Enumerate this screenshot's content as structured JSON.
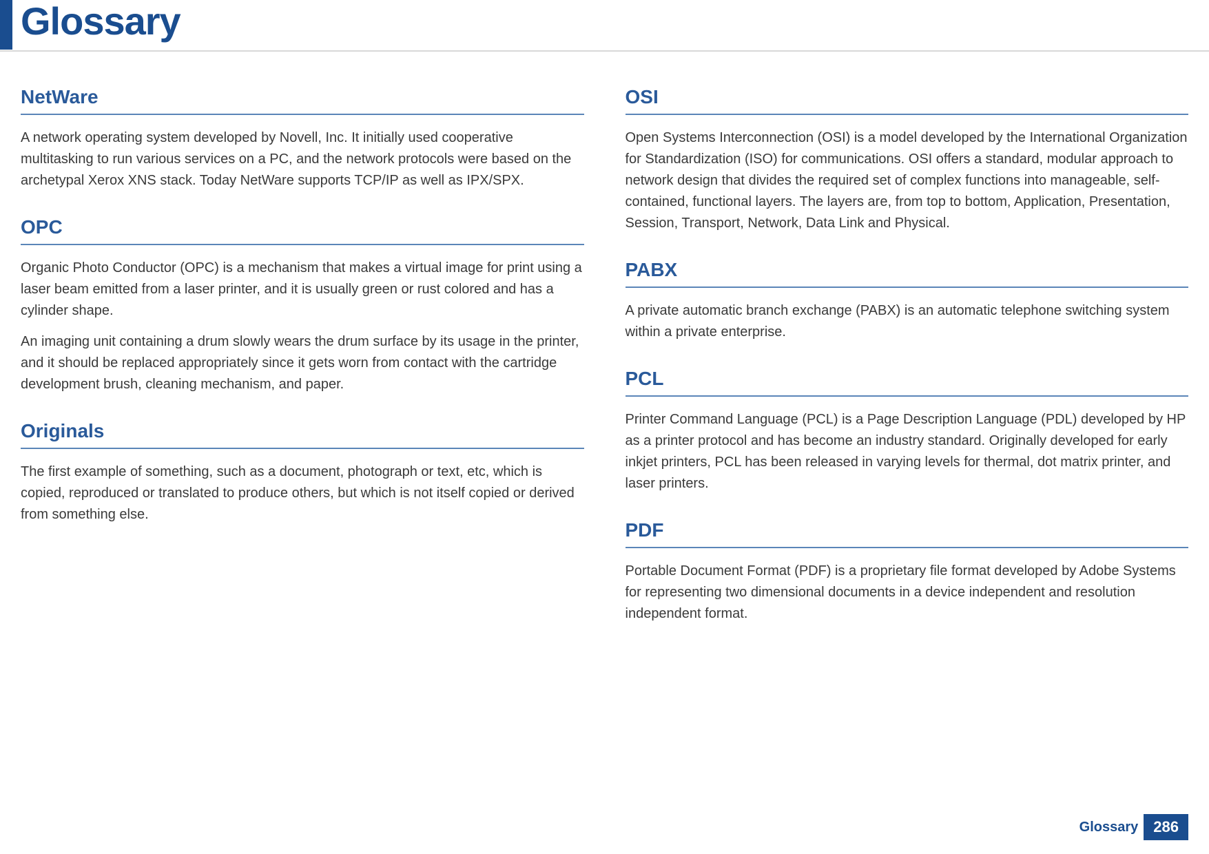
{
  "header": {
    "title": "Glossary"
  },
  "columns": {
    "left": [
      {
        "term": "NetWare",
        "definitions": [
          "A network operating system developed by Novell, Inc. It initially used cooperative multitasking to run various services on a PC, and the network protocols were based on the archetypal Xerox XNS stack. Today NetWare supports TCP/IP as well as IPX/SPX."
        ]
      },
      {
        "term": "OPC",
        "definitions": [
          "Organic Photo Conductor (OPC) is a mechanism that makes a virtual image for print using a laser beam emitted from a laser printer, and it is usually green or rust colored and has a cylinder shape.",
          "An imaging unit containing a drum slowly wears the drum surface by its usage in the printer, and it should be replaced appropriately since it gets worn from contact with the cartridge development brush, cleaning mechanism, and paper."
        ]
      },
      {
        "term": "Originals",
        "definitions": [
          "The first example of something, such as a document, photograph or text, etc, which is copied, reproduced or translated to produce others, but which is not itself copied or derived from something else."
        ]
      }
    ],
    "right": [
      {
        "term": "OSI",
        "definitions": [
          "Open Systems Interconnection (OSI) is a model developed by the International Organization for Standardization (ISO) for communications. OSI offers a standard, modular approach to network design that divides the required set of complex functions into manageable, self-contained, functional layers. The layers are, from top to bottom, Application, Presentation, Session, Transport, Network, Data Link and Physical."
        ]
      },
      {
        "term": "PABX",
        "definitions": [
          "A private automatic branch exchange (PABX) is an automatic telephone switching system within a private enterprise."
        ]
      },
      {
        "term": "PCL",
        "definitions": [
          "Printer Command Language (PCL) is a Page Description Language (PDL) developed by HP as a printer protocol and has become an industry standard. Originally developed for early inkjet printers, PCL has been released in varying levels for thermal, dot matrix printer, and laser printers."
        ]
      },
      {
        "term": "PDF",
        "definitions": [
          "Portable Document Format (PDF) is a proprietary file format developed by Adobe Systems for representing two dimensional documents in a device independent and resolution independent format."
        ]
      }
    ]
  },
  "footer": {
    "label": "Glossary",
    "page": "286"
  },
  "colors": {
    "accent": "#1a4d8f",
    "term_color": "#2a5a9a",
    "term_underline": "#5a85b8",
    "body_text": "#3a3a3a",
    "header_divider": "#d8d8d8"
  }
}
